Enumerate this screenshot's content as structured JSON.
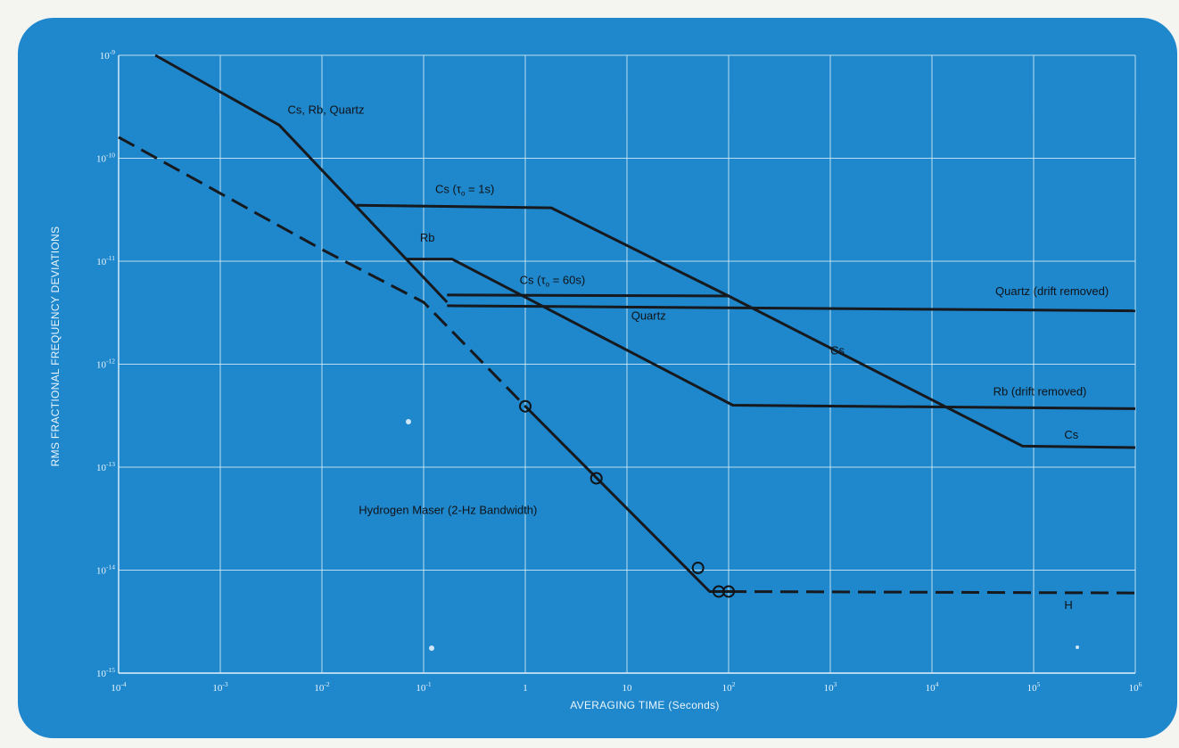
{
  "chart_data": {
    "type": "line",
    "title": "",
    "xlabel": "AVERAGING TIME (Seconds)",
    "ylabel": "RMS FRACTIONAL FREQUENCY DEVIATIONS",
    "x_scale": "log",
    "y_scale": "log",
    "xlim": [
      0.0001,
      1000000
    ],
    "ylim": [
      1e-15,
      1e-09
    ],
    "grid": true,
    "x_ticks": [
      {
        "value": 0.0001,
        "base": "10",
        "exp": "-4"
      },
      {
        "value": 0.001,
        "base": "10",
        "exp": "-3"
      },
      {
        "value": 0.01,
        "base": "10",
        "exp": "-2"
      },
      {
        "value": 0.1,
        "base": "10",
        "exp": "-1"
      },
      {
        "value": 1,
        "base": "1",
        "exp": ""
      },
      {
        "value": 10,
        "base": "10",
        "exp": ""
      },
      {
        "value": 100,
        "base": "10",
        "exp": "2"
      },
      {
        "value": 1000,
        "base": "10",
        "exp": "3"
      },
      {
        "value": 10000,
        "base": "10",
        "exp": "4"
      },
      {
        "value": 100000,
        "base": "10",
        "exp": "5"
      },
      {
        "value": 1000000,
        "base": "10",
        "exp": "6"
      }
    ],
    "y_ticks": [
      {
        "value": 1e-09,
        "base": "10",
        "exp": "-9"
      },
      {
        "value": 1e-10,
        "base": "10",
        "exp": "-10"
      },
      {
        "value": 1e-11,
        "base": "10",
        "exp": "-11"
      },
      {
        "value": 1e-12,
        "base": "10",
        "exp": "-12"
      },
      {
        "value": 1e-13,
        "base": "10",
        "exp": "-13"
      },
      {
        "value": 1e-14,
        "base": "10",
        "exp": "-14"
      },
      {
        "value": 1e-15,
        "base": "10",
        "exp": "-15"
      }
    ],
    "series": [
      {
        "id": "cs-rb-quartz-short",
        "style": "solid",
        "points": [
          [
            0.00023,
            1e-09
          ],
          [
            0.0038,
            2.1e-10
          ],
          [
            0.17,
            4e-12
          ]
        ]
      },
      {
        "id": "quartz-drift-removed",
        "style": "solid",
        "points": [
          [
            0.17,
            3.7e-12
          ],
          [
            1000000,
            3.3e-12
          ]
        ]
      },
      {
        "id": "cs-tau1",
        "style": "solid",
        "points": [
          [
            0.022,
            3.5e-11
          ],
          [
            1.8,
            3.3e-11
          ],
          [
            100,
            4.6e-12
          ],
          [
            78000,
            1.6e-13
          ],
          [
            1000000,
            1.55e-13
          ]
        ]
      },
      {
        "id": "cs-tau60",
        "style": "solid",
        "points": [
          [
            0.17,
            4.7e-12
          ],
          [
            100,
            4.6e-12
          ]
        ]
      },
      {
        "id": "rb",
        "style": "solid",
        "points": [
          [
            0.068,
            1.05e-11
          ],
          [
            0.19,
            1.05e-11
          ],
          [
            110,
            4e-13
          ],
          [
            1000000,
            3.7e-13
          ]
        ]
      },
      {
        "id": "hydrogen-maser",
        "style": "solid",
        "points": [
          [
            1,
            3.9e-13
          ],
          [
            65,
            6.2e-15
          ],
          [
            100,
            6.2e-15
          ]
        ]
      },
      {
        "id": "hydrogen-maser-extrapolated",
        "style": "dashed",
        "points": [
          [
            0.0001,
            1.6e-10
          ],
          [
            0.01,
            1.3e-11
          ],
          [
            0.1,
            4e-12
          ],
          [
            1,
            3.9e-13
          ]
        ]
      },
      {
        "id": "h-long-term",
        "style": "dashed",
        "points": [
          [
            100,
            6.2e-15
          ],
          [
            1000000,
            6e-15
          ]
        ]
      }
    ],
    "markers": [
      {
        "x": 1,
        "y": 3.9e-13
      },
      {
        "x": 5,
        "y": 7.8e-14
      },
      {
        "x": 50,
        "y": 1.05e-14
      },
      {
        "x": 80,
        "y": 6.2e-15
      },
      {
        "x": 100,
        "y": 6.2e-15
      }
    ],
    "annotations": [
      {
        "id": "ann-cs-rb-quartz",
        "text": "Cs, Rb, Quartz",
        "x": 0.0046,
        "y": 2.7e-10
      },
      {
        "id": "ann-cs-tau1",
        "text": "Cs (",
        "tau": "τ",
        "sub": "o",
        "tail": " = 1s)",
        "x": 0.13,
        "y": 4.6e-11
      },
      {
        "id": "ann-rb",
        "text": "Rb",
        "x": 0.092,
        "y": 1.55e-11
      },
      {
        "id": "ann-cs-tau60",
        "text": "Cs (",
        "tau": "τ",
        "sub": "o",
        "tail": " = 60s)",
        "x": 0.88,
        "y": 6e-12
      },
      {
        "id": "ann-quartz-drift",
        "text": "Quartz (drift removed)",
        "x": 42000,
        "y": 4.7e-12
      },
      {
        "id": "ann-quartz",
        "text": "Quartz",
        "x": 11,
        "y": 2.7e-12
      },
      {
        "id": "ann-cs-long",
        "text": "Cs",
        "x": 1000,
        "y": 1.25e-12
      },
      {
        "id": "ann-rb-drift",
        "text": "Rb (drift removed)",
        "x": 40000,
        "y": 5e-13
      },
      {
        "id": "ann-cs-right",
        "text": "Cs",
        "x": 200000,
        "y": 1.9e-13
      },
      {
        "id": "ann-h",
        "text": "H",
        "x": 200000,
        "y": 4.2e-15
      },
      {
        "id": "ann-hydrogen-maser",
        "text": "Hydrogen Maser (2-Hz Bandwidth)",
        "x": 0.023,
        "y": 3.5e-14
      }
    ]
  }
}
